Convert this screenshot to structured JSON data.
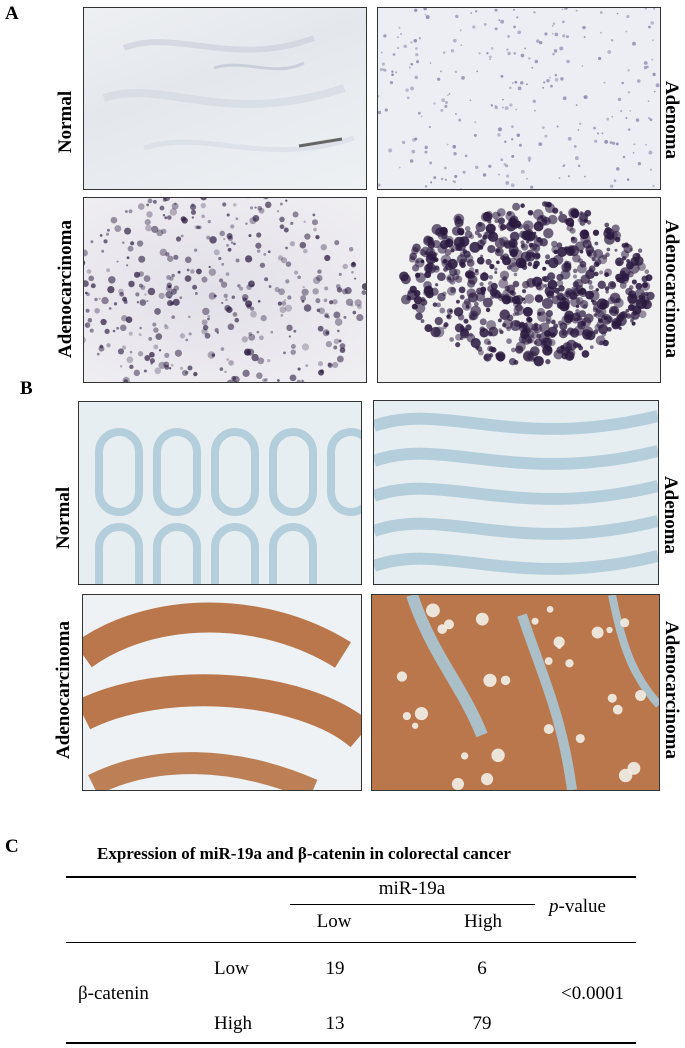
{
  "panel_a": {
    "letter": "A",
    "labels": {
      "top_left": "Normal",
      "top_right": "Adenoma",
      "bottom_left": "Adenocarcinoma",
      "bottom_right": "Adenocarcinoma"
    },
    "stain_color": "#2a1a40"
  },
  "panel_b": {
    "letter": "B",
    "labels": {
      "top_left": "Normal",
      "top_right": "Adenoma",
      "bottom_left": "Adenocarcinoma",
      "bottom_right": "Adenocarcinoma"
    },
    "stain_color": "#b0612e",
    "counterstain_color": "#a9c6d6"
  },
  "panel_c": {
    "letter": "C",
    "title": "Expression of miR-19a and β-catenin in colorectal cancer",
    "column_group": "miR-19a",
    "columns": [
      "Low",
      "High"
    ],
    "pvalue_header_italic": "p",
    "pvalue_header_rest": "-value",
    "row_group": "β-catenin",
    "rows": [
      {
        "label": "Low",
        "values": [
          "19",
          "6"
        ]
      },
      {
        "label": "High",
        "values": [
          "13",
          "79"
        ]
      }
    ],
    "pvalue": "<0.0001"
  }
}
